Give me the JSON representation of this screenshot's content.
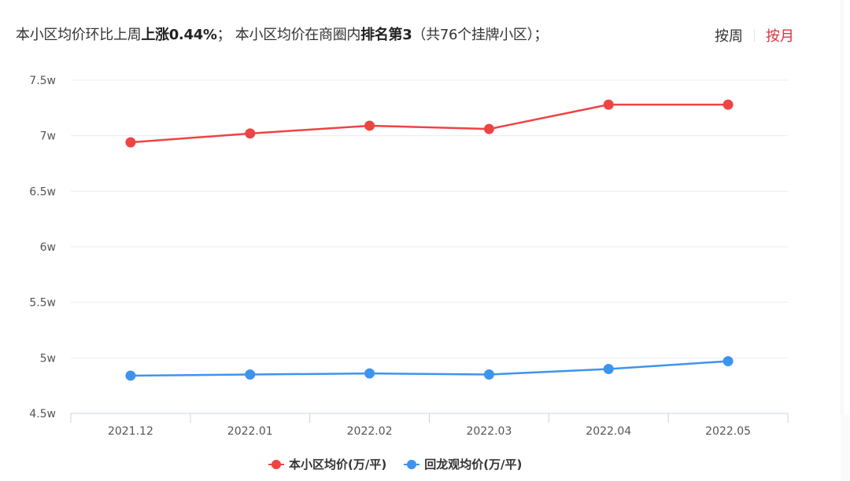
{
  "summary": {
    "prefix": "本小区均价环比上周",
    "change_label": "上涨0.44%",
    "middle": "； 本小区均价在商圈内",
    "rank_label": "排名第3",
    "suffix": "（共76个挂牌小区）；"
  },
  "toggle": {
    "options": [
      {
        "label": "按周",
        "active": false
      },
      {
        "label": "按月",
        "active": true
      }
    ]
  },
  "colors": {
    "series_1": "#ee4444",
    "series_2": "#3d94ee",
    "active_toggle": "#d9323f",
    "grid": "#e8ebf0",
    "axis": "#c9d3e3"
  },
  "legend": {
    "items": [
      {
        "label": "本小区均价(万/平)",
        "color": "#ee4444"
      },
      {
        "label": "回龙观均价(万/平)",
        "color": "#3d94ee"
      }
    ]
  },
  "chart_data": {
    "type": "line",
    "title": "",
    "xlabel": "",
    "ylabel": "",
    "categories": [
      "2021.12",
      "2022.01",
      "2022.02",
      "2022.03",
      "2022.04",
      "2022.05"
    ],
    "series": [
      {
        "name": "本小区均价(万/平)",
        "color": "#ee4444",
        "values": [
          6.94,
          7.02,
          7.09,
          7.06,
          7.28,
          7.28
        ]
      },
      {
        "name": "回龙观均价(万/平)",
        "color": "#3d94ee",
        "values": [
          4.84,
          4.85,
          4.86,
          4.85,
          4.9,
          4.97
        ]
      }
    ],
    "yticks": [
      "4.5w",
      "5w",
      "5.5w",
      "6w",
      "6.5w",
      "7w",
      "7.5w"
    ],
    "ylim": [
      4.5,
      7.5
    ],
    "grid": true,
    "legend_position": "bottom"
  }
}
